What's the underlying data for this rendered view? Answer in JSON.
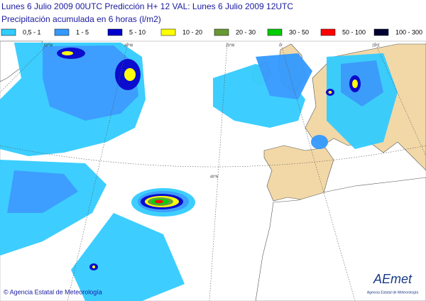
{
  "header": {
    "line1": "Lunes 6 Julio 2009 00UTC    Predicción H+ 12  VAL: Lunes 6 Julio 2009 12UTC",
    "line2": "Precipitación acumulada en 6 horas (l/m2)"
  },
  "legend": [
    {
      "label": "0,5 - 1",
      "color": "#33ccff"
    },
    {
      "label": "1 - 5",
      "color": "#3399ff"
    },
    {
      "label": "5 - 10",
      "color": "#0000cc"
    },
    {
      "label": "10 - 20",
      "color": "#ffff00"
    },
    {
      "label": "20 - 30",
      "color": "#669933"
    },
    {
      "label": "30 - 50",
      "color": "#00cc00"
    },
    {
      "label": "50 - 100",
      "color": "#ff0000"
    },
    {
      "label": "100 - 300",
      "color": "#000033"
    }
  ],
  "graticule": {
    "lon60w": "60°W",
    "lon40w": "40°W",
    "lon20w": "20°W",
    "lon0": "0°",
    "lon20e": "20°E",
    "lat40n": "40°N"
  },
  "footer": "© Agencia Estatal de Meteorología",
  "logo": {
    "name": "AEmet",
    "subtitle": "Agencia Estatal de Meteorología"
  }
}
